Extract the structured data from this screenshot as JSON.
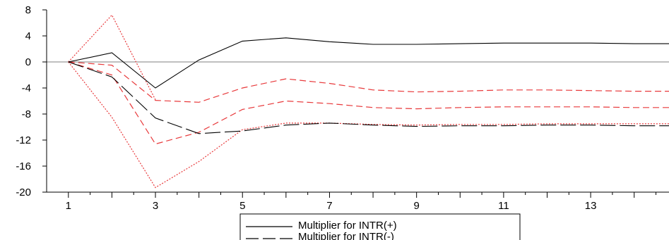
{
  "chart_data": {
    "type": "line",
    "x": [
      1,
      2,
      3,
      4,
      5,
      6,
      7,
      8,
      9,
      10,
      11,
      12,
      13,
      14,
      15
    ],
    "xlim": [
      0.5,
      14.8
    ],
    "ylim": [
      -20,
      8
    ],
    "x_ticks": [
      1,
      3,
      5,
      7,
      9,
      11,
      13
    ],
    "x_tick_labels": [
      "1",
      "3",
      "5",
      "7",
      "9",
      "11",
      "13"
    ],
    "y_ticks": [
      8,
      4,
      0,
      -4,
      -8,
      -12,
      -16,
      -20
    ],
    "y_tick_labels": [
      "8",
      "4",
      "0",
      "-4",
      "-8",
      "-12",
      "-16",
      "-20"
    ],
    "zero_line": true,
    "grid": false,
    "legend_position": "bottom-center",
    "series": [
      {
        "name": "Multiplier for INTR(+)",
        "style": "solid",
        "color": "#000000",
        "values": [
          0,
          1.4,
          -4.0,
          0.3,
          3.2,
          3.7,
          3.1,
          2.7,
          2.7,
          2.8,
          2.9,
          2.9,
          2.9,
          2.8,
          2.8
        ]
      },
      {
        "name": "Multiplier for INTR(-)",
        "style": "long-dash",
        "color": "#000000",
        "values": [
          0,
          -2.3,
          -8.6,
          -11.0,
          -10.6,
          -9.7,
          -9.4,
          -9.7,
          -9.9,
          -9.8,
          -9.8,
          -9.7,
          -9.7,
          -9.8,
          -9.8
        ]
      },
      {
        "style": "dash",
        "color": "#e8393b",
        "values": [
          0,
          -0.5,
          -5.9,
          -6.2,
          -4.0,
          -2.6,
          -3.3,
          -4.3,
          -4.6,
          -4.5,
          -4.3,
          -4.3,
          -4.4,
          -4.5,
          -4.5
        ]
      },
      {
        "style": "dash",
        "color": "#e8393b",
        "values": [
          0,
          -2.0,
          -12.6,
          -10.8,
          -7.3,
          -6.0,
          -6.4,
          -7.0,
          -7.2,
          -7.0,
          -6.9,
          -6.9,
          -6.9,
          -7.0,
          -7.0
        ]
      },
      {
        "style": "dot",
        "color": "#e8393b",
        "values": [
          0,
          7.2,
          -5.8,
          null,
          null,
          null,
          null,
          null,
          null,
          null,
          null,
          null,
          null,
          null,
          null
        ]
      },
      {
        "style": "dot",
        "color": "#e8393b",
        "values": [
          0,
          -8.5,
          -19.3,
          -15.3,
          -10.4,
          -9.4,
          -9.4,
          -9.6,
          -9.7,
          -9.6,
          -9.6,
          -9.5,
          -9.5,
          -9.5,
          -9.5
        ]
      }
    ]
  }
}
